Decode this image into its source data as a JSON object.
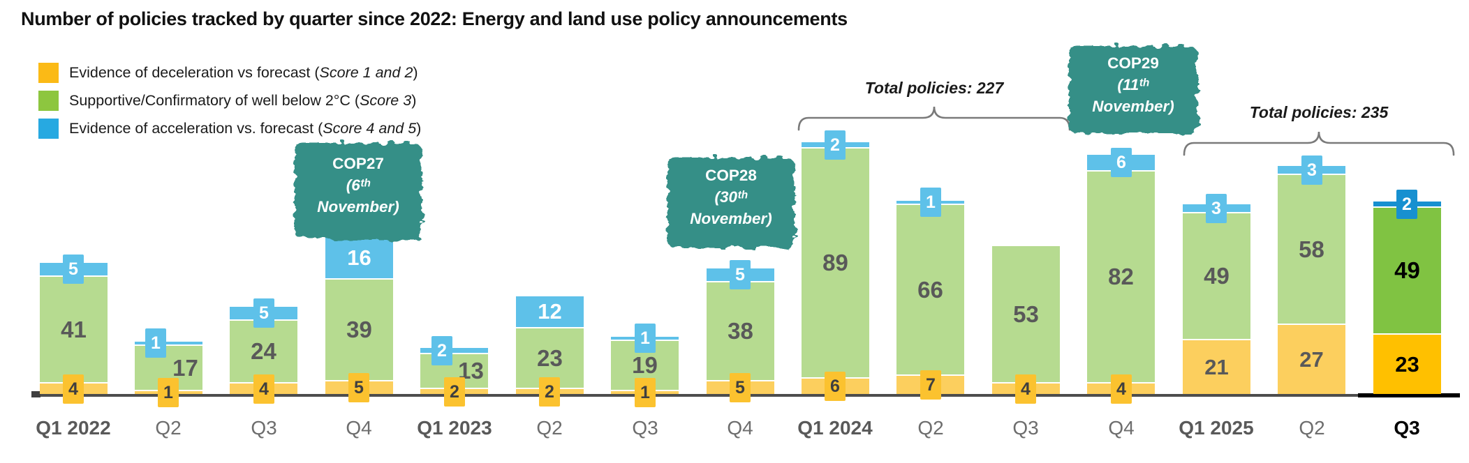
{
  "title": "Number of policies tracked by quarter since 2022: Energy and land use policy announcements",
  "legend": {
    "items": [
      {
        "key": "deceleration",
        "pre": "Evidence of deceleration vs forecast (",
        "italic": "Score 1 and 2",
        "post": ")",
        "color": "#FBBA16"
      },
      {
        "key": "supportive",
        "pre": "Supportive/Confirmatory of well below 2°C (",
        "italic": "Score 3",
        "post": ")",
        "color": "#8DC63F"
      },
      {
        "key": "acceleration",
        "pre": "Evidence of acceleration vs. forecast (",
        "italic": "Score 4 and 5",
        "post": ")",
        "color": "#27A9E1"
      }
    ]
  },
  "chart_data": {
    "type": "stacked-bar",
    "title": "Number of policies tracked by quarter since 2022: Energy and land use policy announcements",
    "categories": [
      "Q1 2022",
      "Q2",
      "Q3",
      "Q4",
      "Q1 2023",
      "Q2",
      "Q3",
      "Q4",
      "Q1 2024",
      "Q2",
      "Q3",
      "Q4",
      "Q1 2025",
      "Q2",
      "Q3"
    ],
    "series": [
      {
        "name": "Evidence of deceleration vs forecast (Score 1 and 2)",
        "role": "deceleration",
        "values": [
          4,
          1,
          4,
          5,
          2,
          2,
          1,
          5,
          6,
          7,
          4,
          4,
          21,
          27,
          23
        ]
      },
      {
        "name": "Supportive/Confirmatory of well below 2°C (Score 3)",
        "role": "supportive",
        "values": [
          41,
          17,
          24,
          39,
          13,
          23,
          19,
          38,
          89,
          66,
          53,
          82,
          49,
          58,
          49
        ]
      },
      {
        "name": "Evidence of acceleration vs. forecast (Score 4 and 5)",
        "role": "acceleration",
        "values": [
          5,
          1,
          5,
          16,
          2,
          12,
          1,
          5,
          2,
          1,
          0,
          6,
          3,
          3,
          2
        ]
      }
    ],
    "x_bold_indices": [
      0,
      4,
      8,
      12,
      14
    ],
    "highlight_index": 14,
    "legend_position": "top-left",
    "grid": false,
    "annotations": {
      "totals": [
        {
          "label": "Total policies: 227",
          "from_index": 8,
          "to_index": 10
        },
        {
          "label": "Total policies: 235",
          "from_index": 12,
          "to_index": 14
        }
      ],
      "events": [
        {
          "lines": [
            "COP27",
            "(6ᵗʰ",
            "November)"
          ],
          "above_index": 3
        },
        {
          "lines": [
            "COP28",
            "(30ᵗʰ",
            "November)"
          ],
          "above_index": 7
        },
        {
          "lines": [
            "COP29",
            "(11ᵗʰ",
            "November)"
          ],
          "above_index": 11
        }
      ]
    },
    "colors": {
      "normal": {
        "deceleration": "#FCCF5E",
        "supportive": "#B6DB90",
        "acceleration": "#5EC1E9",
        "badge_deceleration": "#FBC22F",
        "value_text": "#595959"
      },
      "highlight": {
        "deceleration": "#FFC000",
        "supportive": "#80C342",
        "acceleration": "#1790D0",
        "value_text": "#000000"
      },
      "event_badge": "#348F87",
      "axis": "#4d4d4d",
      "axis_highlight": "#000000"
    }
  }
}
